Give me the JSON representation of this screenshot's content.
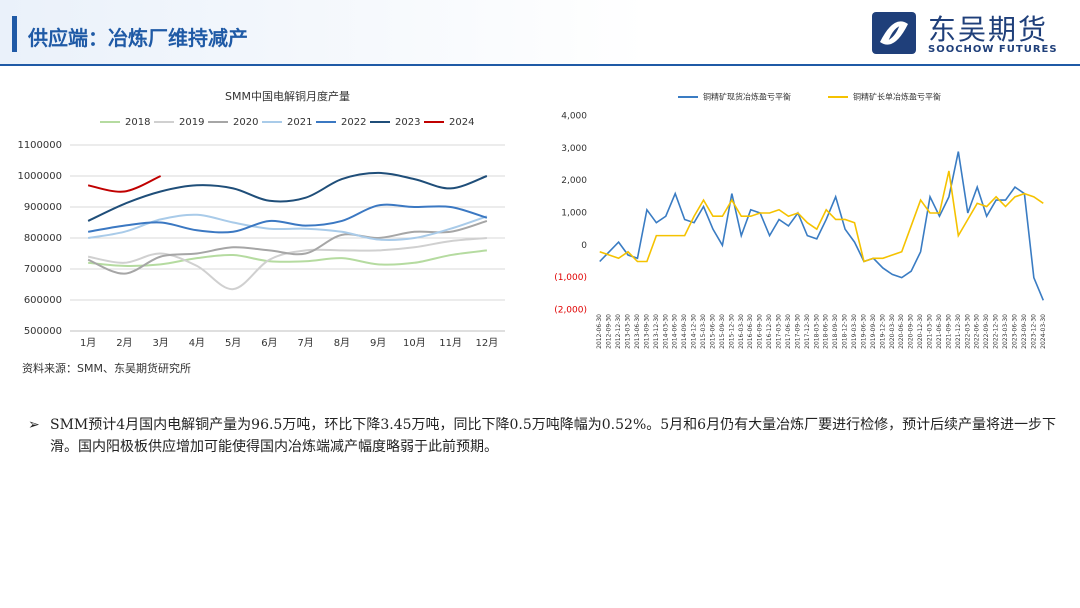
{
  "header": {
    "title": "供应端：冶炼厂维持减产",
    "logo_cn": "东吴期货",
    "logo_en": "SOOCHOW FUTURES"
  },
  "source": "资料来源：SMM、东吴期货研究所",
  "bullet": "SMM预计4月国内电解铜产量为96.5万吨，环比下降3.45万吨，同比下降0.5万吨降幅为0.52%。5月和6月仍有大量冶炼厂要进行检修，预计后续产量将进一步下滑。国内阳极板供应增加可能使得国内冶炼端减产幅度略弱于此前预期。",
  "chart_data": [
    {
      "type": "line",
      "title": "SMM中国电解铜月度产量",
      "smooth": true,
      "grid": true,
      "legend": "top",
      "categories": [
        "1月",
        "2月",
        "3月",
        "4月",
        "5月",
        "6月",
        "7月",
        "8月",
        "9月",
        "10月",
        "11月",
        "12月"
      ],
      "ylim": [
        500000,
        1100000
      ],
      "yticks": [
        500000,
        600000,
        700000,
        800000,
        900000,
        1000000,
        1100000
      ],
      "series": [
        {
          "name": "2018",
          "color": "#b5dba0",
          "values": [
            720000,
            710000,
            715000,
            735000,
            745000,
            725000,
            725000,
            735000,
            715000,
            720000,
            745000,
            760000
          ]
        },
        {
          "name": "2019",
          "color": "#d0d0d0",
          "values": [
            740000,
            720000,
            750000,
            710000,
            635000,
            730000,
            760000,
            760000,
            760000,
            770000,
            790000,
            800000
          ]
        },
        {
          "name": "2020",
          "color": "#a6a6a6",
          "values": [
            730000,
            685000,
            740000,
            750000,
            770000,
            760000,
            750000,
            810000,
            800000,
            820000,
            820000,
            855000
          ]
        },
        {
          "name": "2021",
          "color": "#a9cbe9",
          "values": [
            800000,
            820000,
            860000,
            875000,
            850000,
            830000,
            830000,
            820000,
            795000,
            800000,
            830000,
            870000
          ]
        },
        {
          "name": "2022",
          "color": "#3b78c2",
          "values": [
            820000,
            840000,
            850000,
            825000,
            820000,
            855000,
            840000,
            855000,
            905000,
            900000,
            900000,
            865000
          ]
        },
        {
          "name": "2023",
          "color": "#1f4e79",
          "values": [
            855000,
            910000,
            950000,
            970000,
            960000,
            920000,
            930000,
            990000,
            1010000,
            990000,
            960000,
            1000000
          ]
        },
        {
          "name": "2024",
          "color": "#c00000",
          "values": [
            970000,
            950000,
            1000000,
            null,
            null,
            null,
            null,
            null,
            null,
            null,
            null,
            null
          ]
        }
      ]
    },
    {
      "type": "line",
      "smooth": false,
      "grid": false,
      "legend": "top",
      "negative_tick_color": "#e00000",
      "categories": [
        "2012-06-30",
        "2012-09-30",
        "2012-12-30",
        "2013-03-30",
        "2013-06-30",
        "2013-09-30",
        "2013-12-30",
        "2014-03-30",
        "2014-06-30",
        "2014-09-30",
        "2014-12-30",
        "2015-03-30",
        "2015-06-30",
        "2015-09-30",
        "2015-12-30",
        "2016-03-30",
        "2016-06-30",
        "2016-09-30",
        "2016-12-30",
        "2017-03-30",
        "2017-06-30",
        "2017-09-30",
        "2017-12-30",
        "2018-03-30",
        "2018-06-30",
        "2018-09-30",
        "2018-12-30",
        "2019-03-30",
        "2019-06-30",
        "2019-09-30",
        "2019-12-30",
        "2020-03-30",
        "2020-06-30",
        "2020-09-30",
        "2020-12-30",
        "2021-03-30",
        "2021-06-30",
        "2021-09-30",
        "2021-12-30",
        "2022-03-30",
        "2022-06-30",
        "2022-09-30",
        "2022-12-30",
        "2023-03-30",
        "2023-06-30",
        "2023-09-30",
        "2023-12-30",
        "2024-03-30"
      ],
      "ylim": [
        -2000,
        4000
      ],
      "yticks": [
        {
          "value": -2000,
          "label": "(2,000)"
        },
        {
          "value": -1000,
          "label": "(1,000)"
        },
        0,
        {
          "value": 1000,
          "label": "1,000"
        },
        {
          "value": 2000,
          "label": "2,000"
        },
        {
          "value": 3000,
          "label": "3,000"
        },
        {
          "value": 4000,
          "label": "4,000"
        }
      ],
      "series": [
        {
          "name": "铜精矿现货冶炼盈亏平衡",
          "color": "#3a7cc3",
          "values": [
            -500,
            -200,
            100,
            -300,
            -400,
            1100,
            700,
            900,
            1600,
            800,
            700,
            1200,
            500,
            0,
            1600,
            300,
            1100,
            1000,
            300,
            800,
            600,
            1000,
            300,
            200,
            800,
            1500,
            500,
            100,
            -500,
            -400,
            -700,
            -900,
            -1000,
            -800,
            -200,
            1500,
            900,
            1500,
            2900,
            1000,
            1800,
            900,
            1400,
            1400,
            1800,
            1600,
            -1000,
            -1700
          ]
        },
        {
          "name": "铜精矿长单冶炼盈亏平衡",
          "color": "#f5c200",
          "values": [
            -200,
            -300,
            -400,
            -200,
            -500,
            -500,
            300,
            300,
            300,
            300,
            900,
            1400,
            900,
            900,
            1400,
            900,
            900,
            1000,
            1000,
            1100,
            900,
            1000,
            700,
            500,
            1100,
            800,
            800,
            700,
            -500,
            -400,
            -400,
            -300,
            -200,
            600,
            1400,
            1000,
            1000,
            2300,
            300,
            800,
            1300,
            1200,
            1500,
            1200,
            1500,
            1600,
            1500,
            1300
          ]
        }
      ]
    }
  ]
}
